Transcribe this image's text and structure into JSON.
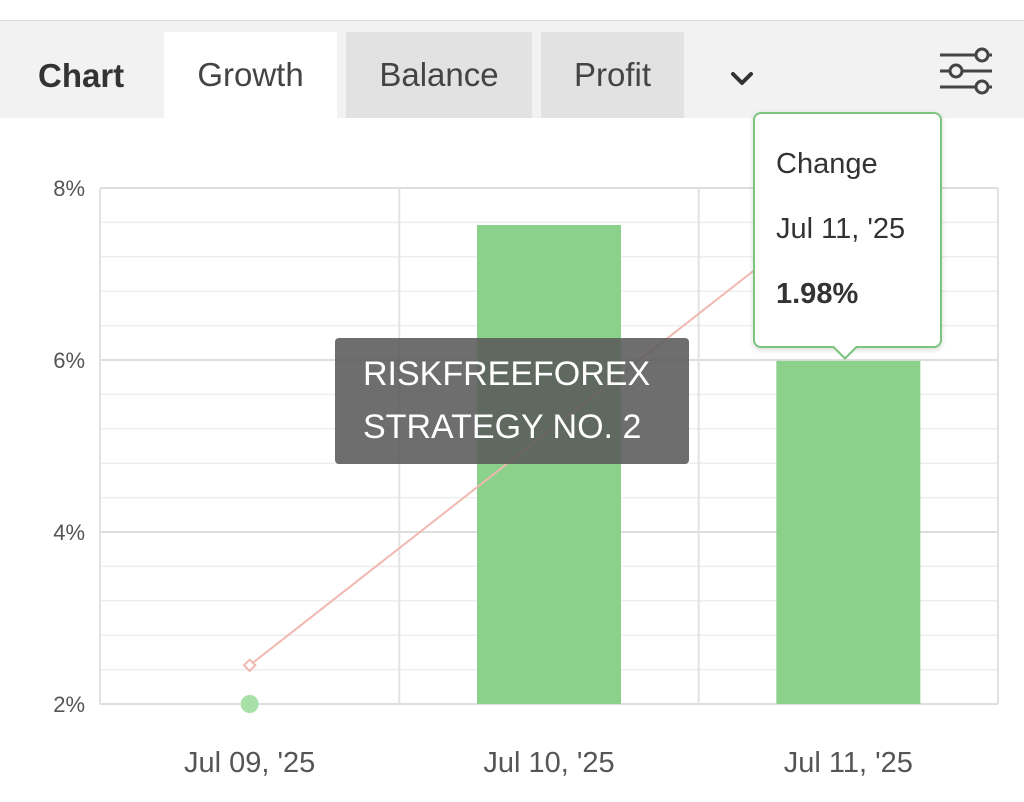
{
  "tabbar": {
    "heading": "Chart",
    "tabs": [
      {
        "label": "Growth",
        "active": true
      },
      {
        "label": "Balance",
        "active": false
      },
      {
        "label": "Profit",
        "active": false
      }
    ],
    "more_icon": "chevron-down-icon",
    "settings_icon": "sliders-icon"
  },
  "watermark": {
    "line1": "RISKFREEFOREX",
    "line2": "STRATEGY NO. 2"
  },
  "tooltip": {
    "title": "Change",
    "date": "Jul 11, '25",
    "value": "1.98%"
  },
  "colors": {
    "bar": "#8bd18b",
    "line": "#f0b8b0",
    "point_green": "#a8e0a8",
    "grid": "#e6e6e6",
    "tooltip_border": "#7dc47f"
  },
  "chart_data": {
    "type": "bar",
    "categories": [
      "Jul 09, '25",
      "Jul 10, '25",
      "Jul 11, '25"
    ],
    "y_ticks": [
      "8%",
      "6%",
      "4%",
      "2%"
    ],
    "ylim": [
      2,
      8
    ],
    "series": [
      {
        "kind": "bar",
        "values": [
          2.0,
          7.57,
          5.99
        ]
      },
      {
        "kind": "line",
        "values": [
          2.45,
          null,
          7.9
        ]
      }
    ],
    "grid": true,
    "title": "",
    "xlabel": "",
    "ylabel": ""
  }
}
